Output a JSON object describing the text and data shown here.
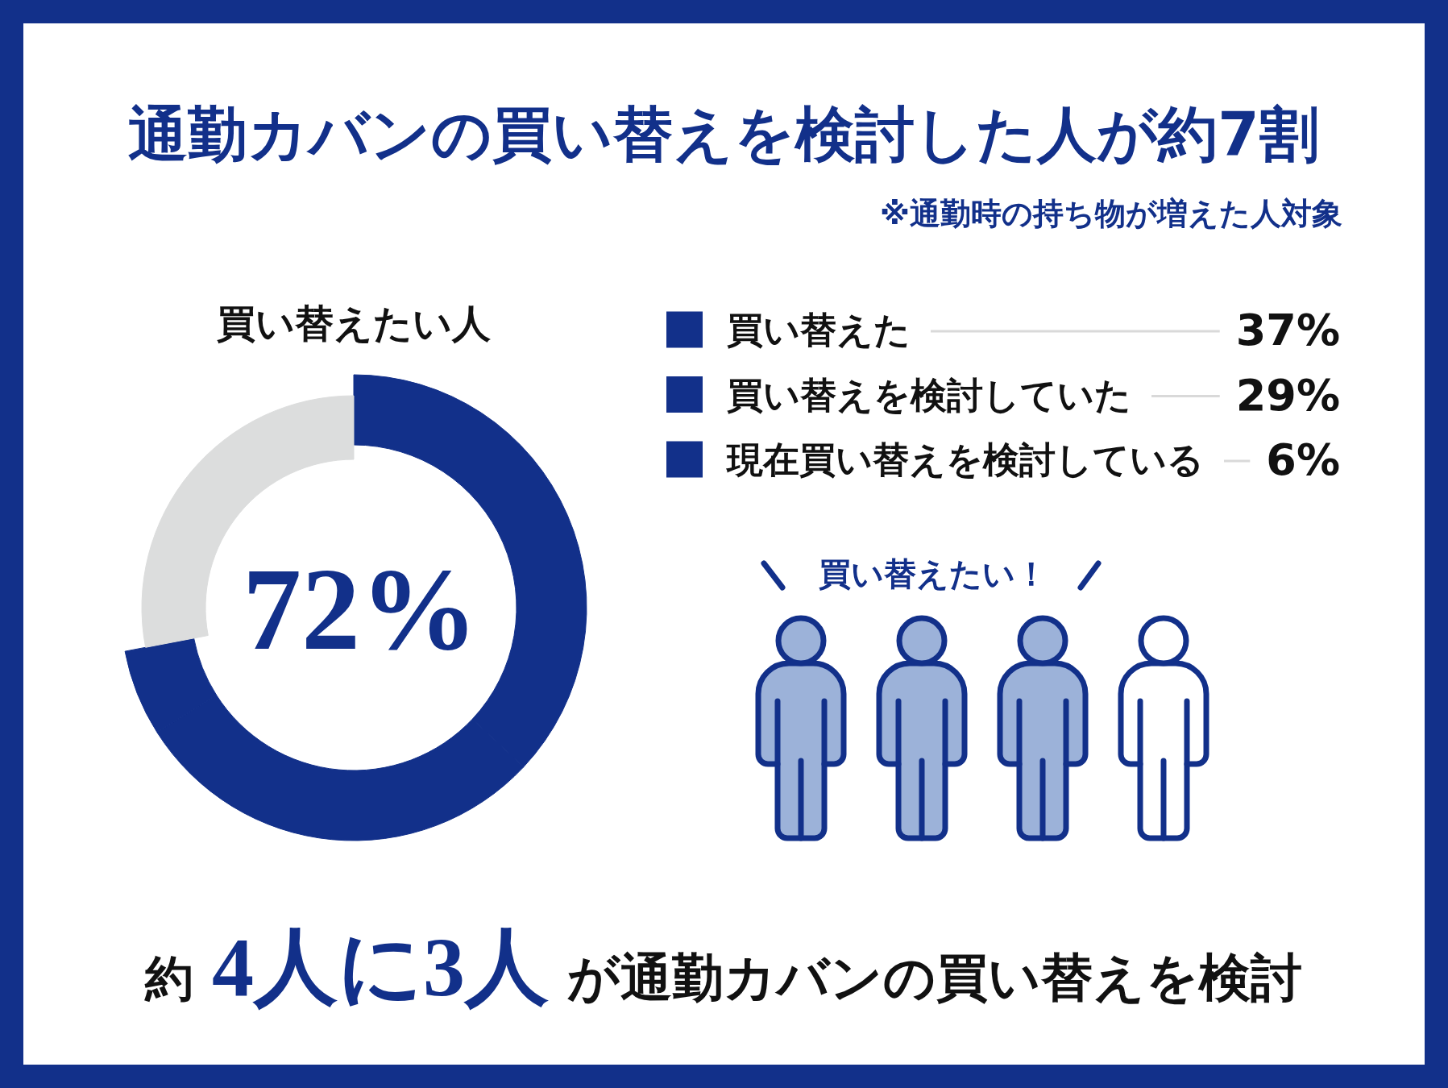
{
  "chart_data": {
    "type": "donut",
    "title": "通勤カバンの買い替えを検討した人が約7割",
    "subtitle": "※通勤時の持ち物が増えた人対象",
    "categories": [
      "買い替えた",
      "買い替えを検討していた",
      "現在買い替えを検討している",
      null
    ],
    "values": [
      37,
      29,
      6,
      28
    ],
    "colors": [
      "#12308a",
      "#12308a",
      "#12308a",
      "#dcdddd"
    ],
    "value_labels": [
      "37%",
      "29%",
      "6%",
      null
    ],
    "legend": "right",
    "annotations": [
      "買い替えたい人",
      "72%",
      "買い替えたい！",
      "約",
      "4人に3人",
      "が通勤カバンの買い替えを検討"
    ]
  }
}
